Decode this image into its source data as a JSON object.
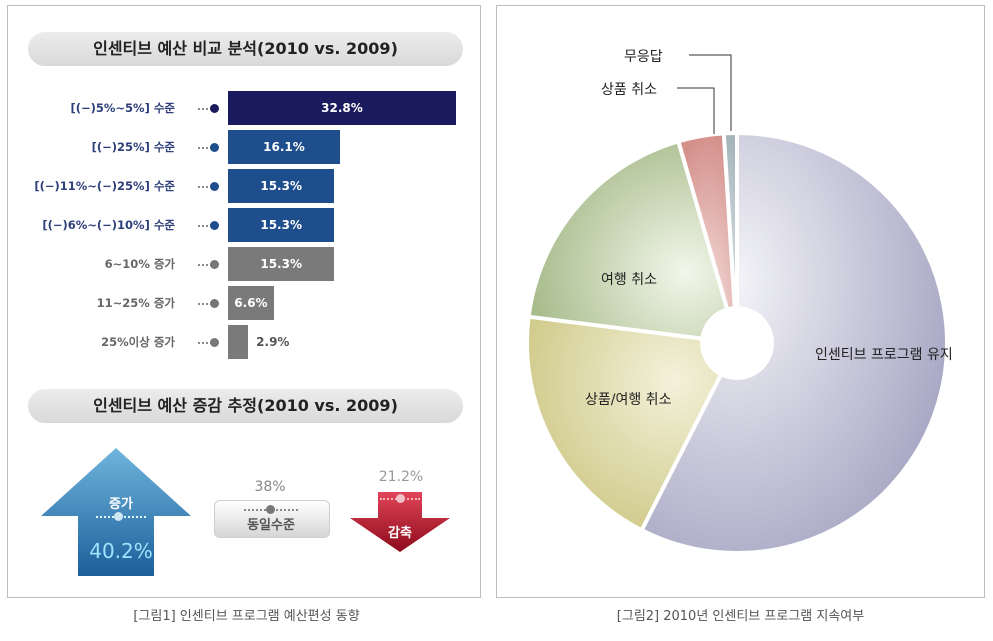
{
  "left_panel": {
    "section1_title": "인센티브 예산 비교 분석(2010 vs. 2009)",
    "section2_title": "인센티브 예산 증감 추정(2010 vs. 2009)",
    "caption": "[그림1] 인센티브 프로그램 예산편성 동향",
    "estimate": {
      "increase_label": "증가",
      "increase_value": "40.2%",
      "same_label": "동일수준",
      "same_value": "38%",
      "decrease_label": "감축",
      "decrease_value": "21.2%"
    }
  },
  "right_panel": {
    "caption": "[그림2] 2010년 인센티브 프로그램 지속여부"
  },
  "colors": {
    "navy": "#1a1a5e",
    "blue": "#1f4e8c",
    "gray": "#7a7a7a",
    "increase": "#2f82b8",
    "decrease": "#c8102e"
  },
  "chart_data": [
    {
      "type": "bar",
      "categories": [
        "[(−)5%∼5%] 수준",
        "[(−)25%] 수준",
        "[(−)11%∼(−)25%] 수준",
        "[(−)6%∼(−)10%] 수준",
        "6∼10% 증가",
        "11∼25% 증가",
        "25%이상 증가"
      ],
      "values": [
        32.8,
        16.1,
        15.3,
        15.3,
        15.3,
        6.6,
        2.9
      ],
      "value_labels": [
        "32.8%",
        "16.1%",
        "15.3%",
        "15.3%",
        "15.3%",
        "6.6%",
        "2.9%"
      ],
      "orientation": "horizontal",
      "bar_colors": [
        "#1a1a5e",
        "#1f4e8c",
        "#1f4e8c",
        "#1f4e8c",
        "#7a7a7a",
        "#7a7a7a",
        "#7a7a7a"
      ],
      "title": "인센티브 예산 비교 분석(2010 vs. 2009)"
    },
    {
      "type": "pie",
      "labels": [
        "인센티브 프로그램 유지",
        "상품/여행 취소",
        "여행 취소",
        "상품 취소",
        "무응답"
      ],
      "values": [
        57.5,
        19.5,
        18.5,
        3.5,
        1.0
      ],
      "colors": [
        "#a9a8c4",
        "#d1cc8c",
        "#a5bb86",
        "#d99f9b",
        "#b2bfc4"
      ],
      "title": ""
    }
  ]
}
